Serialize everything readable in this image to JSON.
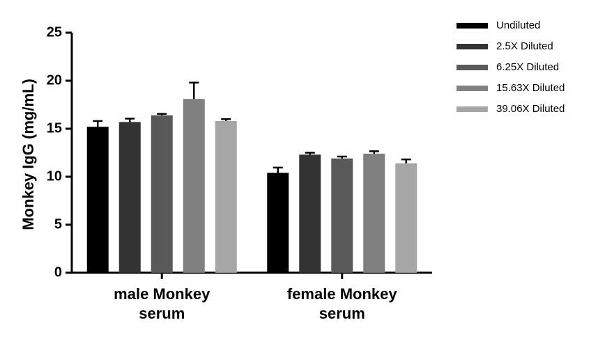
{
  "chart_data": {
    "type": "bar",
    "y_label": "Monkey IgG (mg/mL)",
    "categories": [
      "male Monkey serum",
      "female Monkey serum"
    ],
    "series": [
      {
        "name": "Undiluted",
        "color": "#000000",
        "values": [
          15.2,
          10.4
        ],
        "errors": [
          0.6,
          0.55
        ]
      },
      {
        "name": "2.5X Diluted",
        "color": "#333333",
        "values": [
          15.7,
          12.3
        ],
        "errors": [
          0.35,
          0.2
        ]
      },
      {
        "name": "6.25X Diluted",
        "color": "#595959",
        "values": [
          16.4,
          11.9
        ],
        "errors": [
          0.15,
          0.2
        ]
      },
      {
        "name": "15.63X Diluted",
        "color": "#808080",
        "values": [
          18.1,
          12.4
        ],
        "errors": [
          1.7,
          0.25
        ]
      },
      {
        "name": "39.06X Diluted",
        "color": "#a6a6a6",
        "values": [
          15.8,
          11.4
        ],
        "errors": [
          0.2,
          0.4
        ]
      }
    ],
    "ylim": [
      0,
      25
    ],
    "yticks": [
      0,
      5,
      10,
      15,
      20,
      25
    ]
  }
}
